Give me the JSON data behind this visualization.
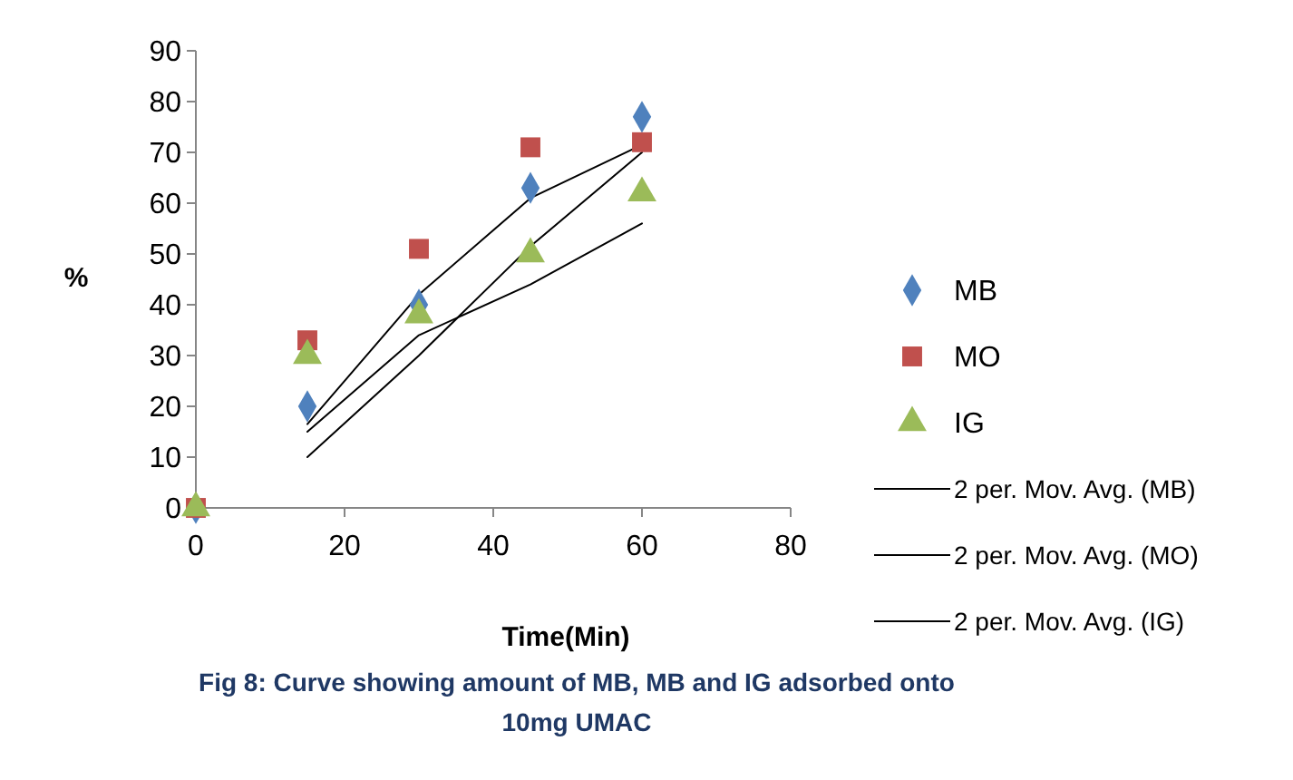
{
  "chart_data": {
    "type": "scatter",
    "xlabel": "Time(Min)",
    "ylabel": "%",
    "annotations": [
      "Fig 8: Curve showing amount of MB, MB and IG adsorbed onto 10mg UMAC"
    ],
    "x": [
      0,
      15,
      30,
      45,
      60
    ],
    "xlim": [
      0,
      80
    ],
    "xticks": [
      0,
      20,
      40,
      60,
      80
    ],
    "ylim": [
      0,
      90
    ],
    "yticks": [
      0,
      10,
      20,
      30,
      40,
      50,
      60,
      70,
      80,
      90
    ],
    "grid": false,
    "legend": "right",
    "series": [
      {
        "name": "MB",
        "color": "#4f81bd",
        "marker": "diamond",
        "values": [
          0,
          20,
          40,
          63,
          77
        ]
      },
      {
        "name": "MO",
        "color": "#c0504d",
        "marker": "square",
        "values": [
          0,
          33,
          51,
          71,
          72
        ]
      },
      {
        "name": "IG",
        "color": "#9bbb59",
        "marker": "triangle",
        "values": [
          0,
          30,
          38,
          50,
          62
        ]
      },
      {
        "name": "2 per. Mov. Avg. (MB)",
        "type": "line",
        "color": "#000000",
        "marker": "none",
        "x": [
          15,
          30,
          45,
          60
        ],
        "values": [
          10,
          30,
          51.5,
          70
        ]
      },
      {
        "name": "2 per. Mov. Avg. (MO)",
        "type": "line",
        "color": "#000000",
        "marker": "none",
        "x": [
          15,
          30,
          45,
          60
        ],
        "values": [
          16.5,
          42,
          61,
          71.5
        ]
      },
      {
        "name": "2 per. Mov. Avg. (IG)",
        "type": "line",
        "color": "#000000",
        "marker": "none",
        "x": [
          15,
          30,
          45,
          60
        ],
        "values": [
          15,
          34,
          44,
          56
        ]
      }
    ]
  }
}
